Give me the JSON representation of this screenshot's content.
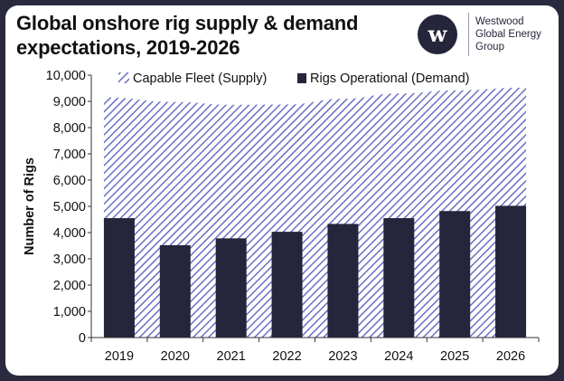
{
  "header": {
    "title_line1": "Global onshore rig supply & demand",
    "title_line2": "expectations, 2019-2026"
  },
  "logo": {
    "mark": "w",
    "line1": "Westwood",
    "line2": "Global Energy",
    "line3": "Group"
  },
  "colors": {
    "frame": "#2a2a3e",
    "bar": "#25253b",
    "hatch": "#6b6fc7"
  },
  "chart_data": {
    "type": "bar",
    "categories": [
      "2019",
      "2020",
      "2021",
      "2022",
      "2023",
      "2024",
      "2025",
      "2026"
    ],
    "ylabel": "Number of Rigs",
    "ylim": [
      0,
      10000
    ],
    "yticks": [
      "0",
      "1,000",
      "2,000",
      "3,000",
      "4,000",
      "5,000",
      "6,000",
      "7,000",
      "8,000",
      "9,000",
      "10,000"
    ],
    "legend_position": "top",
    "grid": false,
    "series": [
      {
        "name": "Capable Fleet (Supply)",
        "kind": "area",
        "pattern": "diagonal-hatch",
        "values": [
          9150,
          8980,
          8870,
          8880,
          9100,
          9300,
          9420,
          9520
        ]
      },
      {
        "name": "Rigs Operational (Demand)",
        "kind": "bar",
        "values": [
          4550,
          3520,
          3780,
          4030,
          4330,
          4550,
          4820,
          5020
        ]
      }
    ]
  }
}
